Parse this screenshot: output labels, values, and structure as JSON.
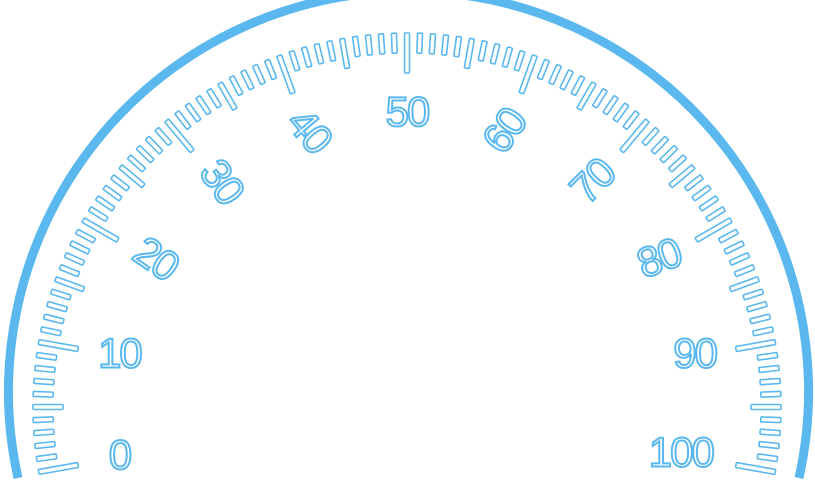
{
  "gauge": {
    "labels": [
      "0",
      "10",
      "20",
      "30",
      "40",
      "50",
      "60",
      "70",
      "80",
      "90",
      "100"
    ]
  }
}
